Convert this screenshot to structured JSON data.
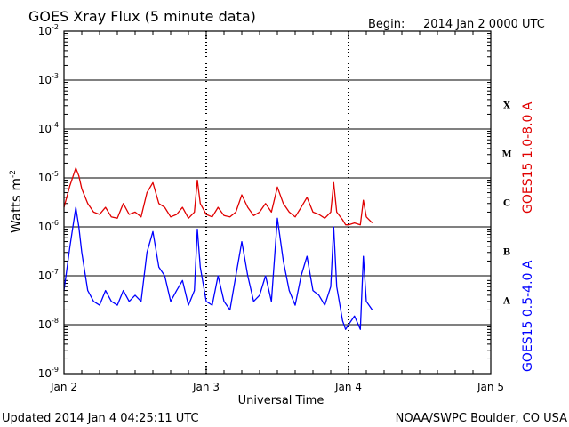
{
  "header": {
    "title": "GOES Xray Flux (5 minute data)",
    "begin_label": "Begin:",
    "begin_value": "2014 Jan 2 0000 UTC"
  },
  "footer": {
    "updated": "Updated 2014 Jan  4 04:25:11 UTC",
    "credit": "NOAA/SWPC Boulder, CO USA"
  },
  "chart_data": {
    "type": "line",
    "title": "GOES Xray Flux (5 minute data)",
    "xlabel": "Universal Time",
    "ylabel": "Watts m",
    "ylabel_sup": "-2",
    "y_scale": "log",
    "ylim": [
      1e-09,
      0.01
    ],
    "xlim": [
      "2014-01-02T00:00Z",
      "2014-01-05T00:00Z"
    ],
    "x_ticks": [
      "Jan 2",
      "Jan 3",
      "Jan 4",
      "Jan 5"
    ],
    "y_ticks": [
      {
        "base": "10",
        "exp": "-9"
      },
      {
        "base": "10",
        "exp": "-8"
      },
      {
        "base": "10",
        "exp": "-7"
      },
      {
        "base": "10",
        "exp": "-6"
      },
      {
        "base": "10",
        "exp": "-5"
      },
      {
        "base": "10",
        "exp": "-4"
      },
      {
        "base": "10",
        "exp": "-3"
      },
      {
        "base": "10",
        "exp": "-2"
      }
    ],
    "flare_classes": [
      "A",
      "B",
      "C",
      "M",
      "X"
    ],
    "grid": true,
    "colors": {
      "long": "#e00000",
      "short": "#0000ff"
    },
    "series": [
      {
        "name": "GOES15 1.0-8.0 A",
        "x": [
          "2014-01-02T00:00Z",
          "2014-01-02T01:00Z",
          "2014-01-02T02:00Z",
          "2014-01-02T02:30Z",
          "2014-01-02T03:00Z",
          "2014-01-02T04:00Z",
          "2014-01-02T05:00Z",
          "2014-01-02T06:00Z",
          "2014-01-02T07:00Z",
          "2014-01-02T08:00Z",
          "2014-01-02T09:00Z",
          "2014-01-02T10:00Z",
          "2014-01-02T11:00Z",
          "2014-01-02T12:00Z",
          "2014-01-02T13:00Z",
          "2014-01-02T14:00Z",
          "2014-01-02T15:00Z",
          "2014-01-02T16:00Z",
          "2014-01-02T17:00Z",
          "2014-01-02T18:00Z",
          "2014-01-02T19:00Z",
          "2014-01-02T20:00Z",
          "2014-01-02T21:00Z",
          "2014-01-02T22:00Z",
          "2014-01-02T22:30Z",
          "2014-01-02T23:00Z",
          "2014-01-03T00:00Z",
          "2014-01-03T01:00Z",
          "2014-01-03T02:00Z",
          "2014-01-03T03:00Z",
          "2014-01-03T04:00Z",
          "2014-01-03T05:00Z",
          "2014-01-03T06:00Z",
          "2014-01-03T07:00Z",
          "2014-01-03T08:00Z",
          "2014-01-03T09:00Z",
          "2014-01-03T10:00Z",
          "2014-01-03T11:00Z",
          "2014-01-03T12:00Z",
          "2014-01-03T13:00Z",
          "2014-01-03T14:00Z",
          "2014-01-03T15:00Z",
          "2014-01-03T16:00Z",
          "2014-01-03T17:00Z",
          "2014-01-03T18:00Z",
          "2014-01-03T19:00Z",
          "2014-01-03T20:00Z",
          "2014-01-03T21:00Z",
          "2014-01-03T21:30Z",
          "2014-01-03T22:00Z",
          "2014-01-03T23:00Z",
          "2014-01-03T23:30Z",
          "2014-01-04T00:00Z",
          "2014-01-04T01:00Z",
          "2014-01-04T02:00Z",
          "2014-01-04T02:30Z",
          "2014-01-04T03:00Z",
          "2014-01-04T04:00Z"
        ],
        "y": [
          2.5e-06,
          7e-06,
          1.6e-05,
          1.1e-05,
          6e-06,
          3e-06,
          2e-06,
          1.8e-06,
          2.5e-06,
          1.6e-06,
          1.5e-06,
          3e-06,
          1.8e-06,
          2e-06,
          1.6e-06,
          5e-06,
          8e-06,
          3e-06,
          2.5e-06,
          1.6e-06,
          1.8e-06,
          2.5e-06,
          1.5e-06,
          2e-06,
          9e-06,
          3e-06,
          1.8e-06,
          1.6e-06,
          2.5e-06,
          1.7e-06,
          1.6e-06,
          2e-06,
          4.5e-06,
          2.5e-06,
          1.7e-06,
          2e-06,
          3e-06,
          2e-06,
          6.5e-06,
          3e-06,
          2e-06,
          1.6e-06,
          2.5e-06,
          4e-06,
          2e-06,
          1.8e-06,
          1.5e-06,
          2e-06,
          8e-06,
          2e-06,
          1.4e-06,
          1.1e-06,
          1.1e-06,
          1.2e-06,
          1.1e-06,
          3.5e-06,
          1.6e-06,
          1.2e-06
        ]
      },
      {
        "name": "GOES15 0.5-4.0 A",
        "x": [
          "2014-01-02T00:00Z",
          "2014-01-02T01:00Z",
          "2014-01-02T02:00Z",
          "2014-01-02T02:30Z",
          "2014-01-02T03:00Z",
          "2014-01-02T04:00Z",
          "2014-01-02T05:00Z",
          "2014-01-02T06:00Z",
          "2014-01-02T07:00Z",
          "2014-01-02T08:00Z",
          "2014-01-02T09:00Z",
          "2014-01-02T10:00Z",
          "2014-01-02T11:00Z",
          "2014-01-02T12:00Z",
          "2014-01-02T13:00Z",
          "2014-01-02T14:00Z",
          "2014-01-02T15:00Z",
          "2014-01-02T16:00Z",
          "2014-01-02T17:00Z",
          "2014-01-02T18:00Z",
          "2014-01-02T19:00Z",
          "2014-01-02T20:00Z",
          "2014-01-02T21:00Z",
          "2014-01-02T22:00Z",
          "2014-01-02T22:30Z",
          "2014-01-02T23:00Z",
          "2014-01-03T00:00Z",
          "2014-01-03T01:00Z",
          "2014-01-03T02:00Z",
          "2014-01-03T03:00Z",
          "2014-01-03T04:00Z",
          "2014-01-03T05:00Z",
          "2014-01-03T06:00Z",
          "2014-01-03T07:00Z",
          "2014-01-03T08:00Z",
          "2014-01-03T09:00Z",
          "2014-01-03T10:00Z",
          "2014-01-03T11:00Z",
          "2014-01-03T12:00Z",
          "2014-01-03T13:00Z",
          "2014-01-03T14:00Z",
          "2014-01-03T15:00Z",
          "2014-01-03T16:00Z",
          "2014-01-03T17:00Z",
          "2014-01-03T18:00Z",
          "2014-01-03T19:00Z",
          "2014-01-03T20:00Z",
          "2014-01-03T21:00Z",
          "2014-01-03T21:30Z",
          "2014-01-03T22:00Z",
          "2014-01-03T23:00Z",
          "2014-01-03T23:30Z",
          "2014-01-04T00:00Z",
          "2014-01-04T01:00Z",
          "2014-01-04T02:00Z",
          "2014-01-04T02:30Z",
          "2014-01-04T03:00Z",
          "2014-01-04T04:00Z"
        ],
        "y": [
          5e-08,
          4e-07,
          2.5e-06,
          1e-06,
          3e-07,
          5e-08,
          3e-08,
          2.5e-08,
          5e-08,
          3e-08,
          2.5e-08,
          5e-08,
          3e-08,
          4e-08,
          3e-08,
          3e-07,
          8e-07,
          1.5e-07,
          1e-07,
          3e-08,
          5e-08,
          8e-08,
          2.5e-08,
          5e-08,
          9e-07,
          1.5e-07,
          3e-08,
          2.5e-08,
          1e-07,
          3e-08,
          2e-08,
          1e-07,
          5e-07,
          1e-07,
          3e-08,
          4e-08,
          1e-07,
          3e-08,
          1.5e-06,
          2e-07,
          5e-08,
          2.5e-08,
          1e-07,
          2.5e-07,
          5e-08,
          4e-08,
          2.5e-08,
          6e-08,
          1e-06,
          6e-08,
          1.2e-08,
          8e-09,
          1e-08,
          1.5e-08,
          8e-09,
          2.5e-07,
          3e-08,
          2e-08
        ]
      }
    ]
  }
}
